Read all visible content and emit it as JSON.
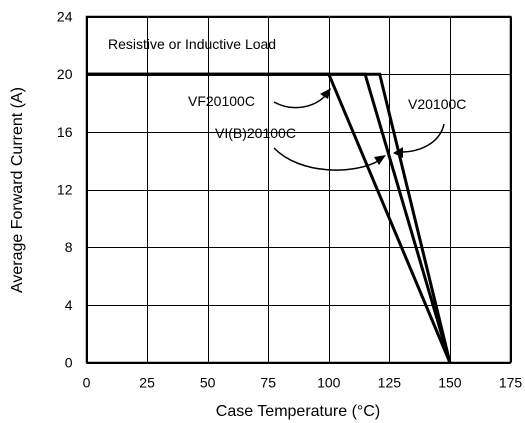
{
  "chart_data": {
    "type": "line",
    "title": "",
    "xlabel": "Case Temperature (°C)",
    "ylabel": "Average Forward Current (A)",
    "xlim": [
      0,
      175
    ],
    "ylim": [
      0,
      24
    ],
    "xticks": [
      0,
      25,
      50,
      75,
      100,
      125,
      150,
      175
    ],
    "yticks": [
      0,
      4,
      8,
      12,
      16,
      20,
      24
    ],
    "grid": true,
    "annotation": "Resistive or Inductive Load",
    "series": [
      {
        "name": "VF20100C",
        "x": [
          0,
          100,
          150
        ],
        "y": [
          20,
          20,
          0
        ]
      },
      {
        "name": "VI(B)20100C",
        "x": [
          0,
          115,
          150
        ],
        "y": [
          20,
          20,
          0
        ]
      },
      {
        "name": "V20100C",
        "x": [
          0,
          121,
          150
        ],
        "y": [
          20,
          20,
          0
        ]
      }
    ],
    "colors": {
      "line": "#000000",
      "grid": "#000000",
      "background": "#ffffff"
    }
  }
}
